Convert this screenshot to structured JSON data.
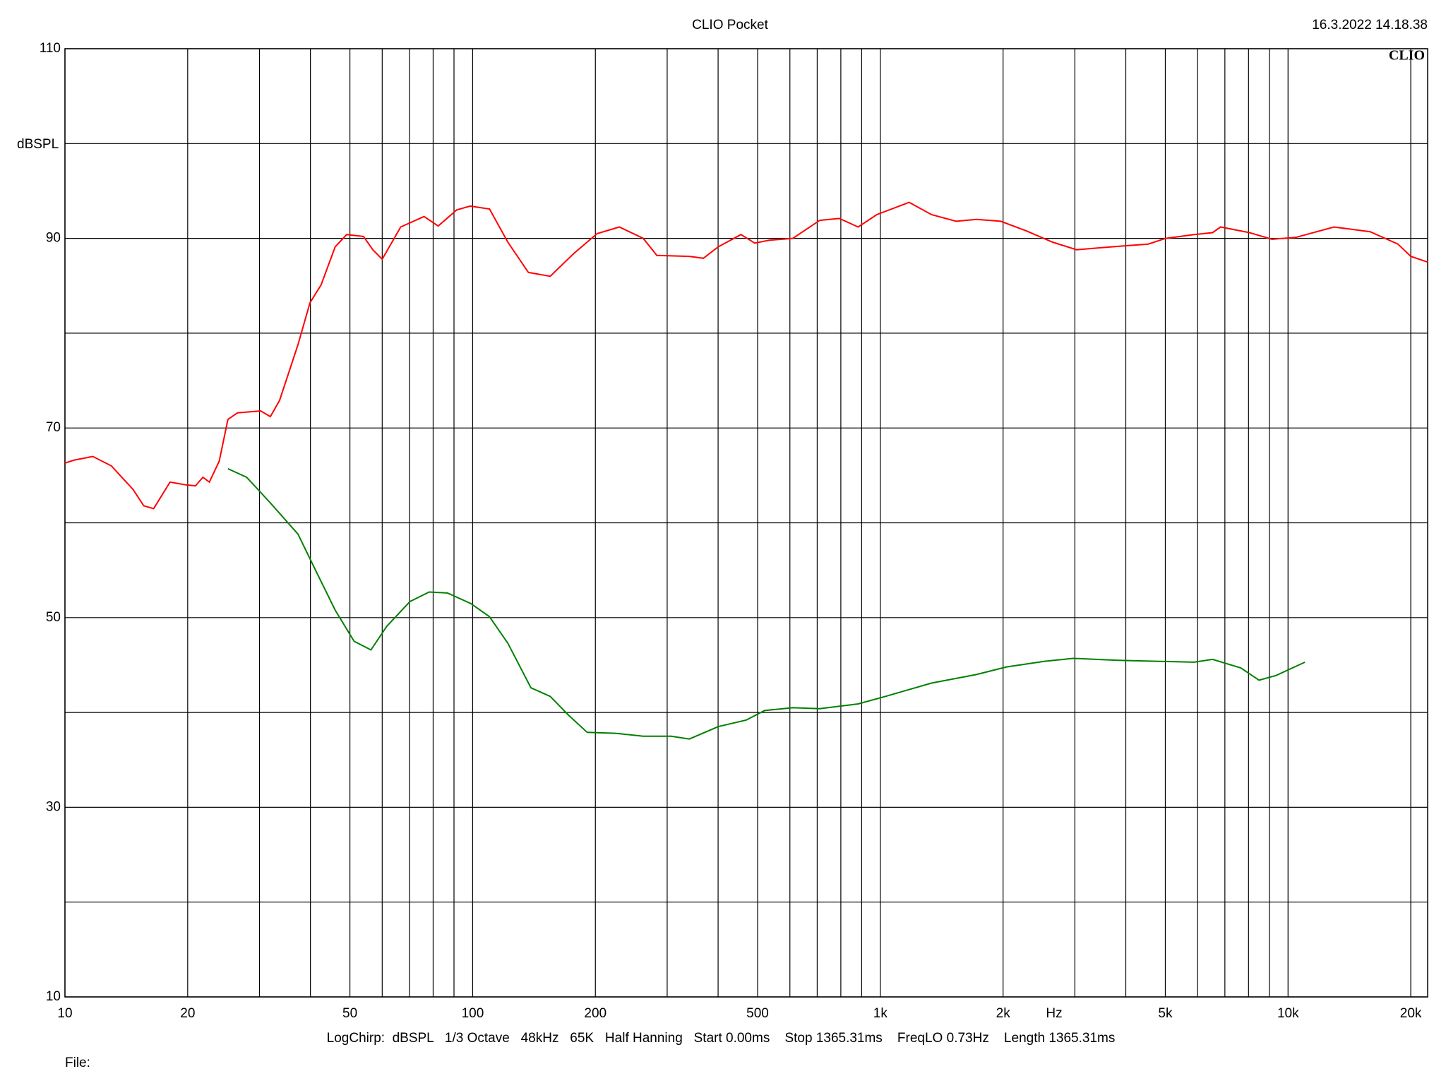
{
  "chart_data": {
    "type": "line",
    "title": "CLIO Pocket",
    "timestamp": "16.3.2022 14.18.38",
    "logo": "CLIO",
    "y_label": "dBSPL",
    "x_label": "Hz",
    "settings_text": "LogChirp:  dBSPL   1/3 Octave   48kHz   65K   Half Hanning   Start 0.00ms    Stop 1365.31ms    FreqLO 0.73Hz    Length 1365.31ms",
    "file_label": "File:",
    "x_scale": "log",
    "grid": true,
    "xlim": [
      10,
      22000
    ],
    "ylim": [
      10,
      110
    ],
    "xticks": [
      10,
      20,
      50,
      100,
      200,
      500,
      {
        "value": 1000,
        "label": "1k"
      },
      {
        "value": 2000,
        "label": "2k"
      },
      {
        "value": 5000,
        "label": "5k"
      },
      {
        "value": 10000,
        "label": "10k"
      },
      {
        "value": 20000,
        "label": "20k"
      }
    ],
    "x_minor_grid": [
      30,
      40,
      60,
      70,
      80,
      90,
      300,
      400,
      600,
      700,
      800,
      900,
      3000,
      4000,
      6000,
      7000,
      8000,
      9000
    ],
    "yticks": [
      10,
      30,
      50,
      70,
      90,
      110
    ],
    "y_minor_grid": [
      20,
      40,
      60,
      80,
      100
    ],
    "series": [
      {
        "color": "#ff0000",
        "x": [
          10,
          10.5,
          11.7,
          13.0,
          14.7,
          15.6,
          16.5,
          18.1,
          19.8,
          20.9,
          21.8,
          22.6,
          23.9,
          25.1,
          26.5,
          30.2,
          31.9,
          33.6,
          37.3,
          39.9,
          42.5,
          46.0,
          49.1,
          54,
          56.9,
          60,
          66.6,
          76,
          82.3,
          91.4,
          98.6,
          110,
          122,
          137,
          155,
          177,
          202,
          229,
          262,
          283,
          340,
          368,
          400,
          455,
          492,
          534,
          610,
          710,
          793,
          882,
          980,
          1177,
          1335,
          1533,
          1720,
          1974,
          2279,
          2646,
          3030,
          3450,
          3960,
          4540,
          5010,
          5880,
          6530,
          6830,
          8040,
          9130,
          10440,
          12960,
          15900,
          18600,
          20000,
          22000
        ],
        "values": [
          66.3,
          66.6,
          67.0,
          66.0,
          63.5,
          61.8,
          61.5,
          64.3,
          64.0,
          63.9,
          64.8,
          64.3,
          66.5,
          70.9,
          71.6,
          71.8,
          71.2,
          72.9,
          78.8,
          83.2,
          85.1,
          89.1,
          90.4,
          90.2,
          88.8,
          87.8,
          91.2,
          92.3,
          91.3,
          93.0,
          93.4,
          93.1,
          89.6,
          86.4,
          86.0,
          88.4,
          90.5,
          91.2,
          90.0,
          88.2,
          88.1,
          87.9,
          89.1,
          90.4,
          89.5,
          89.8,
          90.0,
          91.9,
          92.1,
          91.2,
          92.5,
          93.8,
          92.5,
          91.8,
          92.0,
          91.8,
          90.8,
          89.6,
          88.8,
          89.0,
          89.2,
          89.4,
          90.0,
          90.4,
          90.6,
          91.2,
          90.6,
          89.9,
          90.1,
          91.2,
          90.7,
          89.4,
          88.1,
          87.5
        ]
      },
      {
        "color": "#008000",
        "x": [
          25.1,
          27.9,
          31.9,
          37.3,
          41.5,
          46.0,
          51.2,
          56.3,
          61.6,
          70.2,
          78.2,
          86.7,
          98.9,
          110,
          122,
          139,
          155,
          172,
          191,
          224,
          262,
          307,
          340,
          400,
          469,
          520,
          610,
          710,
          882,
          1030,
          1335,
          1720,
          2040,
          2530,
          2970,
          3830,
          4760,
          5880,
          6530,
          7660,
          8490,
          9350,
          11000
        ],
        "values": [
          65.7,
          64.8,
          62.1,
          58.8,
          54.7,
          50.8,
          47.5,
          46.6,
          49.1,
          51.7,
          52.7,
          52.6,
          51.5,
          50.1,
          47.3,
          42.6,
          41.7,
          39.7,
          37.9,
          37.8,
          37.5,
          37.5,
          37.2,
          38.5,
          39.2,
          40.2,
          40.5,
          40.4,
          40.9,
          41.7,
          43.1,
          44.0,
          44.8,
          45.4,
          45.7,
          45.5,
          45.4,
          45.3,
          45.6,
          44.7,
          43.4,
          43.9,
          45.3
        ]
      }
    ]
  }
}
